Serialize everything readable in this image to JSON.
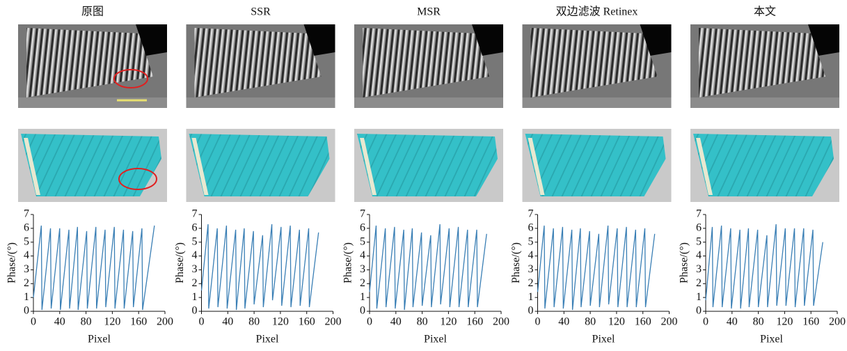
{
  "chart_data": [
    {
      "type": "line",
      "title": "原图",
      "xlabel": "Pixel",
      "ylabel": "Phase/(°)",
      "color": "#3a7fb5",
      "x": [
        0,
        12,
        13,
        26,
        27,
        40,
        41,
        54,
        55,
        67,
        68,
        81,
        82,
        95,
        96,
        109,
        110,
        123,
        124,
        137,
        138,
        151,
        152,
        165,
        166,
        184
      ],
      "values": [
        1,
        6.2,
        0.1,
        6.0,
        0.2,
        6.0,
        0.1,
        5.9,
        0.2,
        6.1,
        0.1,
        5.8,
        0.2,
        6.1,
        0.2,
        5.9,
        0.3,
        6.1,
        0.2,
        5.9,
        0.2,
        5.8,
        0.3,
        6.0,
        0.1,
        6.2
      ],
      "xlim": [
        0,
        200
      ],
      "xticks": [
        0,
        40,
        80,
        120,
        160,
        200
      ],
      "ylim": [
        0,
        7
      ],
      "yticks": [
        0,
        1,
        2,
        3,
        4,
        5,
        6,
        7
      ]
    },
    {
      "type": "line",
      "title": "SSR",
      "xlabel": "Pixel",
      "ylabel": "Phase/(°)",
      "color": "#3a7fb5",
      "x": [
        0,
        10,
        11,
        24,
        25,
        38,
        39,
        52,
        53,
        65,
        66,
        79,
        80,
        93,
        94,
        107,
        108,
        121,
        122,
        135,
        136,
        149,
        150,
        163,
        164,
        178
      ],
      "values": [
        1.5,
        6.3,
        0.2,
        6.0,
        0.3,
        6.2,
        0.2,
        5.9,
        0.1,
        6.0,
        0.2,
        5.8,
        0.5,
        5.5,
        0.3,
        6.3,
        0.8,
        6.1,
        0.4,
        6.2,
        0.3,
        5.9,
        0.4,
        6.0,
        0.3,
        5.7
      ],
      "xlim": [
        0,
        200
      ],
      "xticks": [
        0,
        40,
        80,
        120,
        160,
        200
      ],
      "ylim": [
        0,
        7
      ],
      "yticks": [
        0,
        1,
        2,
        3,
        4,
        5,
        6,
        7
      ]
    },
    {
      "type": "line",
      "title": "MSR",
      "xlabel": "Pixel",
      "ylabel": "Phase/(°)",
      "color": "#3a7fb5",
      "x": [
        0,
        10,
        11,
        24,
        25,
        38,
        39,
        52,
        53,
        65,
        66,
        79,
        80,
        93,
        94,
        107,
        108,
        121,
        122,
        135,
        136,
        149,
        150,
        163,
        164,
        178
      ],
      "values": [
        1.4,
        6.2,
        0.2,
        6.0,
        0.3,
        6.1,
        0.2,
        5.9,
        0.1,
        6.0,
        0.3,
        5.7,
        0.4,
        5.5,
        0.3,
        6.3,
        0.5,
        6.0,
        0.3,
        6.1,
        0.3,
        5.9,
        0.3,
        5.9,
        0.3,
        5.6
      ],
      "xlim": [
        0,
        200
      ],
      "xticks": [
        0,
        40,
        80,
        120,
        160,
        200
      ],
      "ylim": [
        0,
        7
      ],
      "yticks": [
        0,
        1,
        2,
        3,
        4,
        5,
        6,
        7
      ]
    },
    {
      "type": "line",
      "title": "双边滤波 Retinex",
      "xlabel": "Pixel",
      "ylabel": "Phase/(°)",
      "color": "#3a7fb5",
      "x": [
        0,
        10,
        11,
        24,
        25,
        38,
        39,
        52,
        53,
        65,
        66,
        79,
        80,
        93,
        94,
        107,
        108,
        121,
        122,
        135,
        136,
        149,
        150,
        163,
        164,
        178
      ],
      "values": [
        1.4,
        6.2,
        0.2,
        6.0,
        0.3,
        6.1,
        0.2,
        5.9,
        0.1,
        6.0,
        0.3,
        5.8,
        0.4,
        5.6,
        0.3,
        6.2,
        0.5,
        6.0,
        0.3,
        6.1,
        0.3,
        5.9,
        0.3,
        6.0,
        0.3,
        5.6
      ],
      "xlim": [
        0,
        200
      ],
      "xticks": [
        0,
        40,
        80,
        120,
        160,
        200
      ],
      "ylim": [
        0,
        7
      ],
      "yticks": [
        0,
        1,
        2,
        3,
        4,
        5,
        6,
        7
      ]
    },
    {
      "type": "line",
      "title": "本文",
      "xlabel": "Pixel",
      "ylabel": "Phase/(°)",
      "color": "#3a7fb5",
      "x": [
        0,
        10,
        11,
        24,
        25,
        38,
        39,
        52,
        53,
        65,
        66,
        79,
        80,
        93,
        94,
        107,
        108,
        121,
        122,
        135,
        136,
        149,
        150,
        163,
        164,
        178
      ],
      "values": [
        0.8,
        6.1,
        0.3,
        6.2,
        0.3,
        6.0,
        0.2,
        5.9,
        0.2,
        6.0,
        0.3,
        5.9,
        0.3,
        5.5,
        0.3,
        6.3,
        0.4,
        6.0,
        0.4,
        6.0,
        0.3,
        6.0,
        0.4,
        5.9,
        0.4,
        5.0
      ],
      "xlim": [
        0,
        200
      ],
      "xticks": [
        0,
        40,
        80,
        120,
        160,
        200
      ],
      "ylim": [
        0,
        7
      ],
      "yticks": [
        0,
        1,
        2,
        3,
        4,
        5,
        6,
        7
      ]
    }
  ]
}
